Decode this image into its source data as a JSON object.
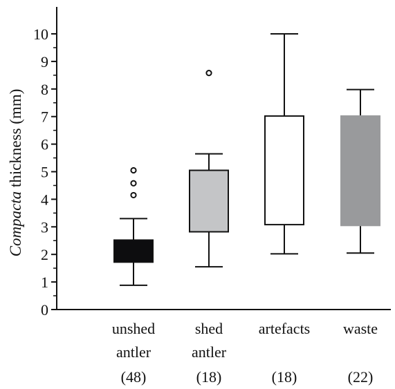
{
  "chart_data": {
    "type": "boxplot",
    "ylabel_italic": "Compacta",
    "ylabel_rest": " thickness (mm)",
    "ylim": [
      0,
      11
    ],
    "yticks": [
      0,
      1,
      2,
      3,
      4,
      5,
      6,
      7,
      8,
      9,
      10
    ],
    "grid": false,
    "categories": [
      {
        "lines": [
          "unshed",
          "antler"
        ],
        "n": "(48)"
      },
      {
        "lines": [
          "shed",
          "antler"
        ],
        "n": "(18)"
      },
      {
        "lines": [
          "artefacts"
        ],
        "n": "(18)"
      },
      {
        "lines": [
          "waste"
        ],
        "n": "(22)"
      }
    ],
    "boxes": [
      {
        "whisker_low": 0.88,
        "q1": 1.72,
        "q3": 2.52,
        "whisker_high": 3.3,
        "outliers": [
          4.15,
          4.58,
          5.05
        ],
        "fill": "#0d0d0f"
      },
      {
        "whisker_low": 1.55,
        "q1": 2.82,
        "q3": 5.05,
        "whisker_high": 5.65,
        "outliers": [
          8.58
        ],
        "fill": "#c4c5c7"
      },
      {
        "whisker_low": 2.02,
        "q1": 3.08,
        "q3": 7.02,
        "whisker_high": 10.0,
        "outliers": [],
        "fill": "#ffffff"
      },
      {
        "whisker_low": 2.05,
        "q1": 3.05,
        "q3": 7.02,
        "whisker_high": 7.98,
        "outliers": [],
        "fill": "#999a9c"
      }
    ]
  }
}
